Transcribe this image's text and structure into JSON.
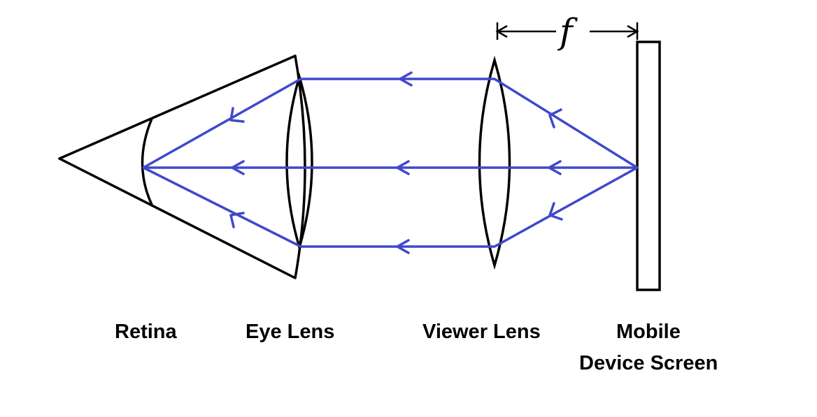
{
  "labels": {
    "retina": "Retina",
    "eye_lens": "Eye Lens",
    "viewer_lens": "Viewer Lens",
    "screen_line1": "Mobile",
    "screen_line2": "Device Screen"
  },
  "focal_symbol": "f",
  "colors": {
    "ray": "#3f48cc",
    "outline": "#000000"
  }
}
